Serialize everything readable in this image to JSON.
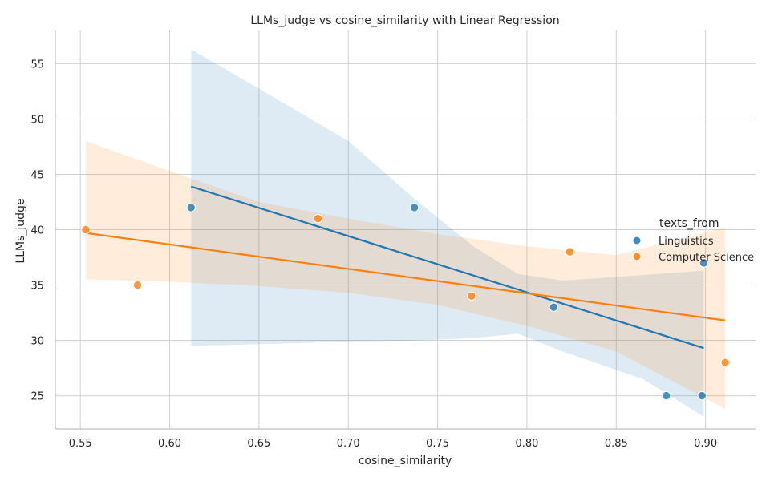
{
  "chart_data": {
    "type": "scatter",
    "title": "LLMs_judge vs cosine_similarity with Linear Regression",
    "xlabel": "cosine_similarity",
    "ylabel": "LLMs_judge",
    "xlim": [
      0.536,
      0.928
    ],
    "ylim": [
      22,
      58
    ],
    "xticks": [
      "0.55",
      "0.60",
      "0.65",
      "0.70",
      "0.75",
      "0.80",
      "0.85",
      "0.90"
    ],
    "yticks": [
      "25",
      "30",
      "35",
      "40",
      "45",
      "50",
      "55"
    ],
    "grid": true,
    "legend": {
      "title": "texts_from",
      "placement": "right"
    },
    "series": [
      {
        "name": "Linguistics",
        "color": "#1f77b4",
        "points": [
          {
            "x": 0.612,
            "y": 42
          },
          {
            "x": 0.737,
            "y": 42
          },
          {
            "x": 0.815,
            "y": 33
          },
          {
            "x": 0.878,
            "y": 25
          },
          {
            "x": 0.898,
            "y": 25
          },
          {
            "x": 0.899,
            "y": 37
          }
        ],
        "regression": {
          "x_start": 0.612,
          "y_start": 43.9,
          "x_end": 0.899,
          "y_end": 29.3
        },
        "ci_band": [
          {
            "x": 0.612,
            "lo": 29.5,
            "hi": 56.3
          },
          {
            "x": 0.66,
            "lo": 29.7,
            "hi": 51.8
          },
          {
            "x": 0.7,
            "lo": 29.9,
            "hi": 48.0
          },
          {
            "x": 0.74,
            "lo": 30.0,
            "hi": 42.4
          },
          {
            "x": 0.77,
            "lo": 30.2,
            "hi": 38.5
          },
          {
            "x": 0.795,
            "lo": 30.6,
            "hi": 36.0
          },
          {
            "x": 0.82,
            "lo": 29.0,
            "hi": 35.4
          },
          {
            "x": 0.865,
            "lo": 26.5,
            "hi": 35.9
          },
          {
            "x": 0.899,
            "lo": 23.1,
            "hi": 36.3
          }
        ]
      },
      {
        "name": "Computer Science",
        "color": "#ff7f0e",
        "points": [
          {
            "x": 0.553,
            "y": 40
          },
          {
            "x": 0.582,
            "y": 35
          },
          {
            "x": 0.683,
            "y": 41
          },
          {
            "x": 0.769,
            "y": 34
          },
          {
            "x": 0.824,
            "y": 38
          },
          {
            "x": 0.911,
            "y": 28
          }
        ],
        "regression": {
          "x_start": 0.553,
          "y_start": 39.7,
          "x_end": 0.911,
          "y_end": 31.8
        },
        "ci_band": [
          {
            "x": 0.553,
            "lo": 35.5,
            "hi": 48.0
          },
          {
            "x": 0.6,
            "lo": 35.3,
            "hi": 45.3
          },
          {
            "x": 0.65,
            "lo": 34.9,
            "hi": 42.5
          },
          {
            "x": 0.7,
            "lo": 34.3,
            "hi": 41.0
          },
          {
            "x": 0.75,
            "lo": 33.2,
            "hi": 39.6
          },
          {
            "x": 0.8,
            "lo": 31.3,
            "hi": 38.5
          },
          {
            "x": 0.85,
            "lo": 29.0,
            "hi": 37.7
          },
          {
            "x": 0.911,
            "lo": 23.8,
            "hi": 40.2
          }
        ]
      }
    ]
  }
}
